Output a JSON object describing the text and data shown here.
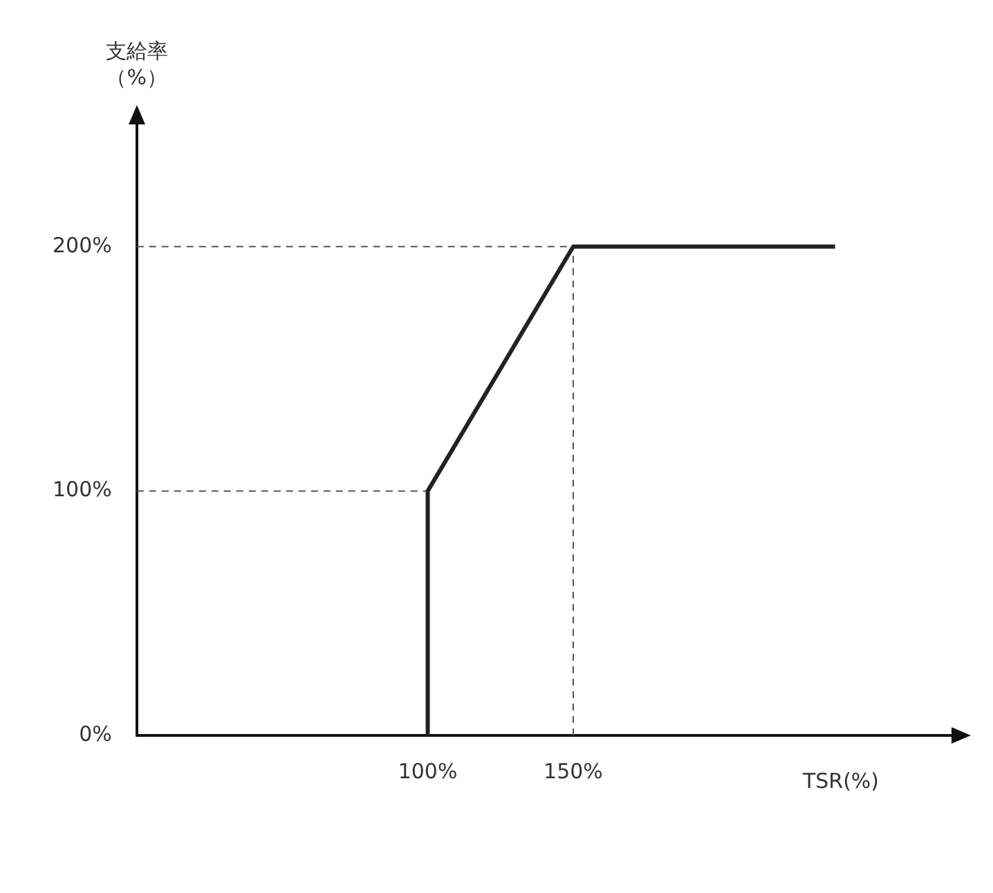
{
  "chart_data": {
    "type": "line",
    "ylabel": "支給率（%）",
    "xlabel": "TSR(%)",
    "xlim": [
      0,
      280
    ],
    "ylim": [
      0,
      250
    ],
    "xticks": [
      {
        "value": 100,
        "label": "100%"
      },
      {
        "value": 150,
        "label": "150%"
      }
    ],
    "yticks": [
      {
        "value": 0,
        "label": "0%"
      },
      {
        "value": 100,
        "label": "100%"
      },
      {
        "value": 200,
        "label": "200%"
      }
    ],
    "grid": false,
    "legend": false,
    "marker": "none",
    "series": [
      {
        "color": "#222222",
        "line_style": "solid",
        "x": [
          100,
          100,
          150,
          240
        ],
        "values": [
          0,
          100,
          200,
          200
        ]
      },
      {
        "color": "#555555",
        "line_style": "dashed",
        "x": [
          0,
          100
        ],
        "values": [
          100,
          100
        ]
      },
      {
        "color": "#555555",
        "line_style": "dashed",
        "x": [
          0,
          150
        ],
        "values": [
          200,
          200
        ]
      },
      {
        "color": "#555555",
        "line_style": "dashed",
        "x": [
          150,
          150
        ],
        "values": [
          0,
          200
        ]
      }
    ]
  }
}
